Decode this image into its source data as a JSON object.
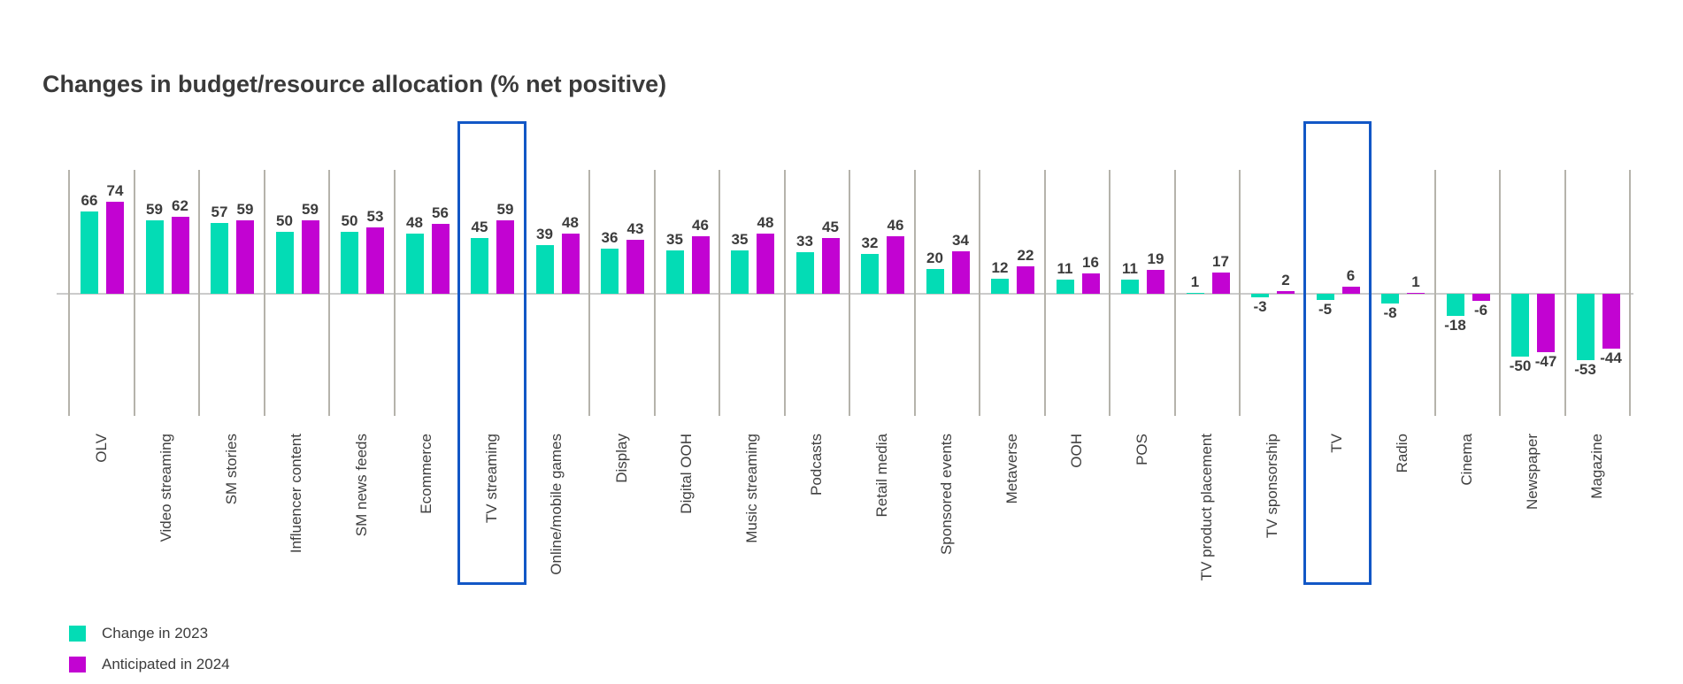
{
  "title": "Changes in budget/resource allocation (% net positive)",
  "legend": {
    "items": [
      {
        "label": "Change in 2023",
        "color": "#03dcb5"
      },
      {
        "label": "Anticipated in 2024",
        "color": "#c203d2"
      }
    ]
  },
  "colors": {
    "series_2023": "#03dcb5",
    "series_2024": "#c203d2",
    "highlight_box": "#1257c6",
    "divider": "#b5b3ab",
    "zero_line": "#cbcbcb",
    "text": "#3c3c3c"
  },
  "chart_data": {
    "type": "bar",
    "title": "Changes in budget/resource allocation (% net positive)",
    "categories": [
      "OLV",
      "Video streaming",
      "SM stories",
      "Influencer content",
      "SM news feeds",
      "Ecommerce",
      "TV streaming",
      "Online/mobile games",
      "Display",
      "Digital OOH",
      "Music streaming",
      "Podcasts",
      "Retail media",
      "Sponsored events",
      "Metaverse",
      "OOH",
      "POS",
      "TV product placement",
      "TV sponsorship",
      "TV",
      "Radio",
      "Cinema",
      "Newspaper",
      "Magazine"
    ],
    "series": [
      {
        "name": "Change in 2023",
        "color": "#03dcb5",
        "values": [
          66,
          59,
          57,
          50,
          50,
          48,
          45,
          39,
          36,
          35,
          35,
          33,
          32,
          20,
          12,
          11,
          11,
          1,
          -3,
          -5,
          -8,
          -18,
          -50,
          -53
        ]
      },
      {
        "name": "Anticipated in 2024",
        "color": "#c203d2",
        "values": [
          74,
          62,
          59,
          59,
          53,
          56,
          59,
          48,
          43,
          46,
          48,
          45,
          46,
          34,
          22,
          16,
          19,
          17,
          2,
          6,
          1,
          -6,
          -47,
          -44
        ]
      }
    ],
    "highlighted_categories": [
      "TV streaming",
      "TV"
    ],
    "data_labels": true,
    "xlabel": "",
    "ylabel": "",
    "ylim": [
      -100,
      100
    ],
    "grid": "vertical-category-dividers",
    "legend_position": "bottom-left"
  }
}
